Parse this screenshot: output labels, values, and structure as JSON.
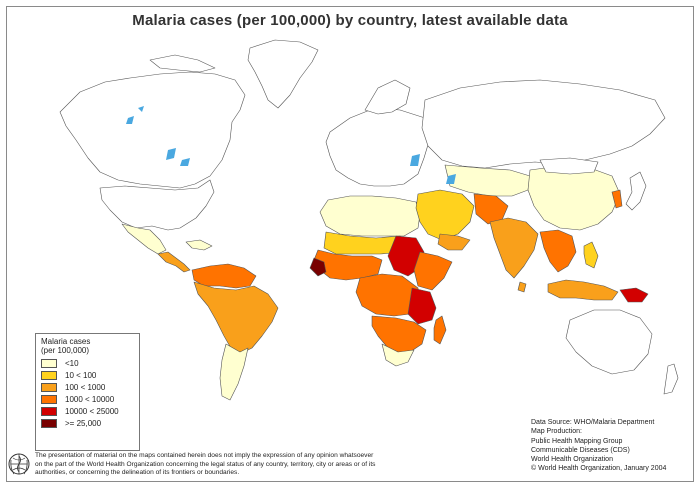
{
  "title": "Malaria cases (per 100,000) by country, latest available data",
  "legend": {
    "title": "Malaria cases",
    "subtitle": "(per 100,000)",
    "classes": [
      {
        "label": "<10",
        "color": "#ffffd0"
      },
      {
        "label": "10 < 100",
        "color": "#ffd21e"
      },
      {
        "label": "100 < 1000",
        "color": "#f9a01b"
      },
      {
        "label": "1000 < 10000",
        "color": "#ff7300"
      },
      {
        "label": "10000 < 25000",
        "color": "#d20000"
      },
      {
        "label": ">= 25,000",
        "color": "#780000"
      }
    ]
  },
  "source": {
    "line1": "Data Source: WHO/Malaria Department",
    "line2": "Map Production:",
    "line3": "Public Health Mapping Group",
    "line4": "Communicable Diseases (CDS)",
    "line5": "World Health Organization",
    "line6": "© World Health Organization, January 2004"
  },
  "disclaimer": {
    "line1": "The presentation of material on the maps contained herein does not imply the expression of any opinion whatsoever",
    "line2": "on the part of the World Health Organization concerning the legal status of any country, territory, city or areas or of its",
    "line3": "authorities, or concerning the delineation of its frontiers or boundaries."
  },
  "colors": {
    "nodata": "#ffffff",
    "lt10": "#ffffd0",
    "c10_100": "#ffd21e",
    "c100_1000": "#f9a01b",
    "c1000_10000": "#ff7300",
    "c10000_25000": "#d20000",
    "ge25000": "#780000",
    "water": "#4aa8e0",
    "border": "#555555"
  }
}
